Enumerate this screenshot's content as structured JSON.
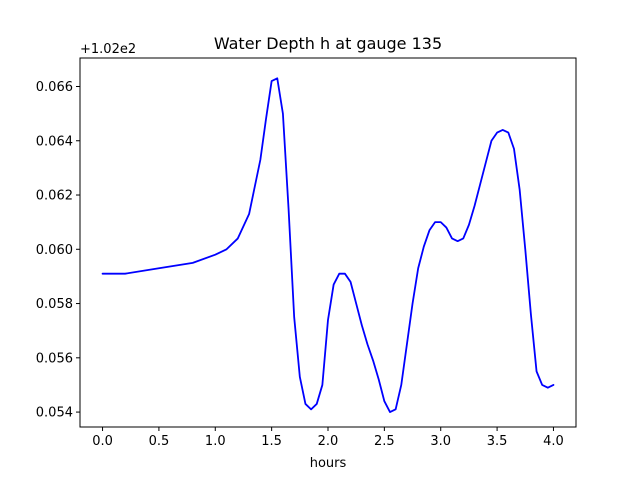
{
  "chart_data": {
    "type": "line",
    "title": "Water Depth h at gauge 135",
    "xlabel": "hours",
    "ylabel": "",
    "offset_label": "+1.02e2",
    "xlim": [
      -0.2,
      4.2
    ],
    "ylim": [
      0.05345,
      0.06705
    ],
    "x_ticks": [
      0.0,
      0.5,
      1.0,
      1.5,
      2.0,
      2.5,
      3.0,
      3.5,
      4.0
    ],
    "x_tick_labels": [
      "0.0",
      "0.5",
      "1.0",
      "1.5",
      "2.0",
      "2.5",
      "3.0",
      "3.5",
      "4.0"
    ],
    "y_ticks": [
      0.054,
      0.056,
      0.058,
      0.06,
      0.062,
      0.064,
      0.066
    ],
    "y_tick_labels": [
      "0.054",
      "0.056",
      "0.058",
      "0.060",
      "0.062",
      "0.064",
      "0.066"
    ],
    "grid": false,
    "line_color": "#0000ff",
    "series": [
      {
        "x": [
          0.0,
          0.2,
          0.5,
          0.8,
          1.0,
          1.1,
          1.2,
          1.3,
          1.4,
          1.45,
          1.5,
          1.55,
          1.6,
          1.65,
          1.7,
          1.75,
          1.8,
          1.85,
          1.9,
          1.95,
          2.0,
          2.05,
          2.1,
          2.15,
          2.2,
          2.25,
          2.3,
          2.35,
          2.4,
          2.45,
          2.5,
          2.55,
          2.6,
          2.65,
          2.7,
          2.75,
          2.8,
          2.85,
          2.9,
          2.95,
          3.0,
          3.05,
          3.1,
          3.15,
          3.2,
          3.25,
          3.3,
          3.35,
          3.4,
          3.45,
          3.5,
          3.55,
          3.6,
          3.65,
          3.7,
          3.75,
          3.8,
          3.85,
          3.9,
          3.95,
          4.0
        ],
        "y": [
          0.0591,
          0.0591,
          0.0593,
          0.0595,
          0.0598,
          0.06,
          0.0604,
          0.0613,
          0.0633,
          0.0648,
          0.0662,
          0.0663,
          0.065,
          0.0615,
          0.0575,
          0.0553,
          0.0543,
          0.0541,
          0.0543,
          0.055,
          0.0574,
          0.0587,
          0.0591,
          0.0591,
          0.0588,
          0.058,
          0.0572,
          0.0565,
          0.0559,
          0.0552,
          0.0544,
          0.054,
          0.0541,
          0.055,
          0.0565,
          0.058,
          0.0593,
          0.0601,
          0.0607,
          0.061,
          0.061,
          0.0608,
          0.0604,
          0.0603,
          0.0604,
          0.0609,
          0.0616,
          0.0624,
          0.0632,
          0.064,
          0.0643,
          0.0644,
          0.0643,
          0.0637,
          0.0622,
          0.06,
          0.0576,
          0.0555,
          0.055,
          0.0549,
          0.055
        ]
      }
    ]
  }
}
